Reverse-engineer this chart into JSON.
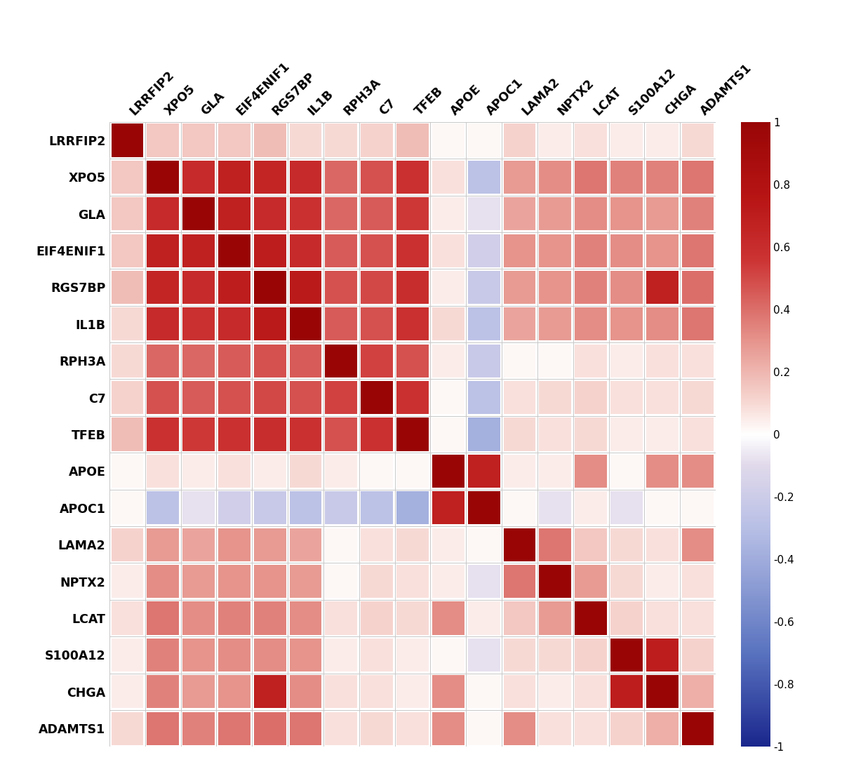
{
  "labels": [
    "LRRFIP2",
    "XPO5",
    "GLA",
    "EIF4ENIF1",
    "RGS7BP",
    "IL1B",
    "RPH3A",
    "C7",
    "TFEB",
    "APOE",
    "APOC1",
    "LAMA2",
    "NPTX2",
    "LCAT",
    "S100A12",
    "CHGA",
    "ADAMTS1"
  ],
  "corr_matrix": [
    [
      1.0,
      0.15,
      0.15,
      0.15,
      0.18,
      0.1,
      0.1,
      0.12,
      0.18,
      0.02,
      0.02,
      0.12,
      0.05,
      0.08,
      0.05,
      0.05,
      0.1
    ],
    [
      0.15,
      1.0,
      0.62,
      0.68,
      0.65,
      0.62,
      0.42,
      0.48,
      0.58,
      0.08,
      -0.28,
      0.28,
      0.32,
      0.38,
      0.35,
      0.35,
      0.38
    ],
    [
      0.15,
      0.62,
      1.0,
      0.68,
      0.62,
      0.58,
      0.42,
      0.45,
      0.55,
      0.05,
      -0.08,
      0.25,
      0.28,
      0.32,
      0.3,
      0.28,
      0.35
    ],
    [
      0.15,
      0.68,
      0.68,
      1.0,
      0.7,
      0.62,
      0.45,
      0.48,
      0.58,
      0.08,
      -0.18,
      0.3,
      0.3,
      0.35,
      0.32,
      0.3,
      0.38
    ],
    [
      0.18,
      0.65,
      0.62,
      0.7,
      1.0,
      0.72,
      0.48,
      0.5,
      0.6,
      0.05,
      -0.22,
      0.28,
      0.3,
      0.35,
      0.32,
      0.68,
      0.4
    ],
    [
      0.1,
      0.62,
      0.58,
      0.62,
      0.72,
      1.0,
      0.45,
      0.48,
      0.58,
      0.1,
      -0.28,
      0.25,
      0.28,
      0.32,
      0.3,
      0.32,
      0.38
    ],
    [
      0.1,
      0.42,
      0.42,
      0.45,
      0.48,
      0.45,
      1.0,
      0.52,
      0.48,
      0.05,
      -0.22,
      0.02,
      0.02,
      0.08,
      0.05,
      0.08,
      0.08
    ],
    [
      0.12,
      0.48,
      0.45,
      0.48,
      0.5,
      0.48,
      0.52,
      1.0,
      0.58,
      0.02,
      -0.28,
      0.08,
      0.1,
      0.12,
      0.08,
      0.08,
      0.1
    ],
    [
      0.18,
      0.58,
      0.55,
      0.58,
      0.6,
      0.58,
      0.48,
      0.58,
      1.0,
      0.02,
      -0.38,
      0.1,
      0.08,
      0.1,
      0.05,
      0.05,
      0.08
    ],
    [
      0.02,
      0.08,
      0.05,
      0.08,
      0.05,
      0.1,
      0.05,
      0.02,
      0.02,
      1.0,
      0.68,
      0.05,
      0.05,
      0.32,
      0.02,
      0.32,
      0.32
    ],
    [
      0.02,
      -0.28,
      -0.08,
      -0.18,
      -0.22,
      -0.28,
      -0.22,
      -0.28,
      -0.38,
      0.68,
      1.0,
      0.02,
      -0.08,
      0.05,
      -0.08,
      0.02,
      0.02
    ],
    [
      0.12,
      0.28,
      0.25,
      0.3,
      0.28,
      0.25,
      0.02,
      0.08,
      0.1,
      0.05,
      0.02,
      1.0,
      0.38,
      0.15,
      0.1,
      0.08,
      0.32
    ],
    [
      0.05,
      0.32,
      0.28,
      0.3,
      0.3,
      0.28,
      0.02,
      0.1,
      0.08,
      0.05,
      -0.08,
      0.38,
      1.0,
      0.28,
      0.1,
      0.05,
      0.08
    ],
    [
      0.08,
      0.38,
      0.32,
      0.35,
      0.35,
      0.32,
      0.08,
      0.12,
      0.1,
      0.32,
      0.05,
      0.15,
      0.28,
      1.0,
      0.12,
      0.08,
      0.08
    ],
    [
      0.05,
      0.35,
      0.3,
      0.32,
      0.32,
      0.3,
      0.05,
      0.08,
      0.05,
      0.02,
      -0.08,
      0.1,
      0.1,
      0.12,
      1.0,
      0.7,
      0.12
    ],
    [
      0.05,
      0.35,
      0.28,
      0.3,
      0.68,
      0.32,
      0.08,
      0.08,
      0.05,
      0.32,
      0.02,
      0.08,
      0.05,
      0.08,
      0.7,
      1.0,
      0.22
    ],
    [
      0.1,
      0.38,
      0.35,
      0.38,
      0.4,
      0.38,
      0.08,
      0.1,
      0.08,
      0.32,
      0.02,
      0.32,
      0.08,
      0.08,
      0.12,
      0.22,
      1.0
    ]
  ],
  "background_color": "#ffffff",
  "grid_color": "#c8c8c8",
  "label_fontsize": 12.5,
  "cbar_ticks": [
    -1,
    -0.8,
    -0.6,
    -0.4,
    -0.2,
    0,
    0.2,
    0.4,
    0.6,
    0.8,
    1
  ],
  "cbar_ticklabels": [
    "-1",
    "-0.8",
    "-0.6",
    "-0.4",
    "-0.2",
    "0",
    "0.2",
    "0.4",
    "0.6",
    "0.8",
    "1"
  ]
}
